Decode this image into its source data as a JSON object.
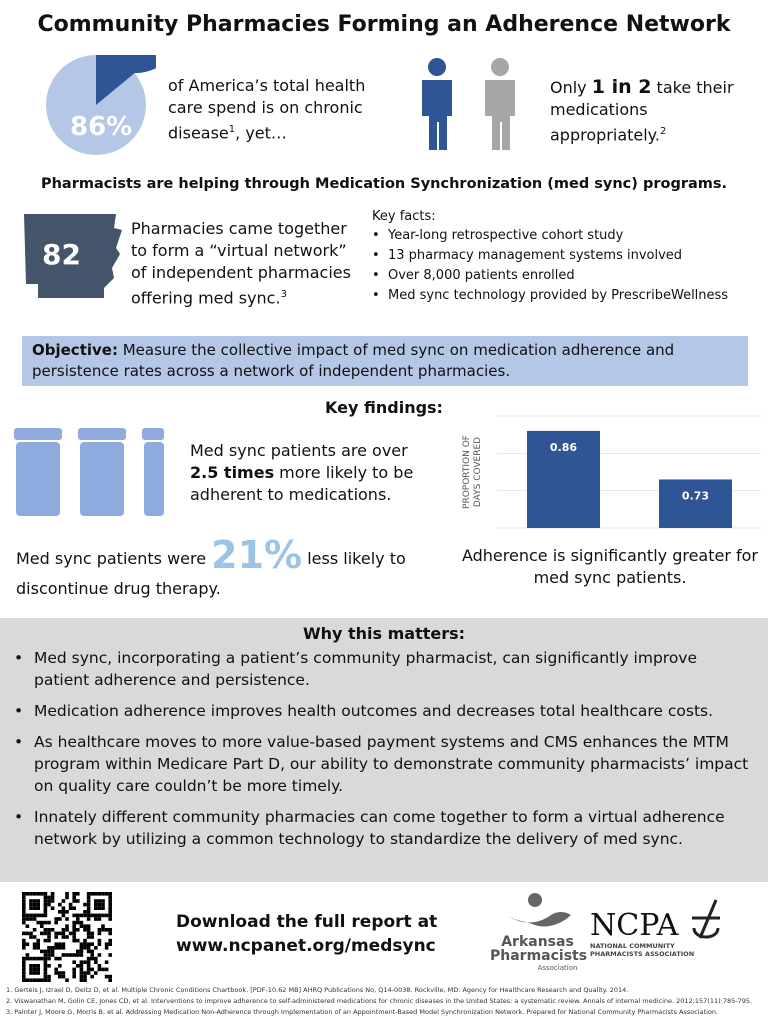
{
  "title": "Community Pharmacies Forming an Adherence Network",
  "stat1": {
    "value": "86%",
    "fraction": 0.86,
    "text": "of America’s total health care spend is on chronic disease",
    "sup": "1",
    "tail": ", yet…"
  },
  "stat2": {
    "pre": "Only ",
    "strong": "1 in 2",
    "post": " take their medications appropriately.",
    "sup": "2"
  },
  "subtitle": "Pharmacists are helping through Medication Synchronization (med sync) programs.",
  "network": {
    "count": "82",
    "text": "Pharmacies came together to form a “virtual network” of independent pharmacies offering med sync.",
    "sup": "3"
  },
  "key_facts": {
    "heading": "Key facts:",
    "items": [
      "Year-long retrospective cohort study",
      "13 pharmacy management systems involved",
      "Over 8,000 patients enrolled",
      "Med sync technology provided by PrescribeWellness"
    ]
  },
  "objective": {
    "label": "Objective:",
    "text": " Measure the collective impact of med sync on medication adherence and persistence rates across a network of independent pharmacies."
  },
  "findings": {
    "heading": "Key findings:",
    "f1_pre": "Med sync patients are over ",
    "f1_strong": "2.5 times",
    "f1_post": " more likely to be adherent to medications.",
    "f2_pre": "Med sync patients were ",
    "f2_big": "21%",
    "f2_post": " less likely to discontinue drug therapy.",
    "chart_caption": "Adherence is significantly greater for med sync patients."
  },
  "chart_data": {
    "type": "bar",
    "ylabel": "PROPORTION OF DAYS COVERED",
    "values": [
      0.86,
      0.73
    ],
    "data_labels": [
      "0.86",
      "0.73"
    ],
    "ylim": [
      0.6,
      0.9
    ],
    "grid": true,
    "color": "#2f5597"
  },
  "why": {
    "heading": "Why this matters:",
    "items": [
      "Med sync, incorporating a patient’s community pharmacist, can significantly improve patient adherence and persistence.",
      "Medication adherence improves health outcomes and decreases total healthcare costs.",
      "As healthcare moves to more value-based payment systems and CMS enhances the MTM program within Medicare Part D, our ability to demonstrate community pharmacists’ impact on quality care couldn’t be more timely.",
      "Innately different community pharmacies can come together to form a virtual adherence network by utilizing a common technology to standardize the delivery of med sync."
    ]
  },
  "download": {
    "line1": "Download the full report at",
    "line2": "www.ncpanet.org/medsync"
  },
  "logos": {
    "apa": [
      "Arkansas",
      "Pharmacists",
      "Association"
    ],
    "ncpa": "NCPA",
    "ncpa_sub": [
      "NATIONAL COMMUNITY",
      "PHARMACISTS ASSOCIATION"
    ]
  },
  "footnotes": [
    "1. Gerteis J, Izrael D, Deitz D, et al. Multiple Chronic Conditions Chartbook. [PDF-10.62 MB] AHRQ Publications No, Q14-0038. Rockville, MD: Agency for Healthcare Research and Quality. 2014.",
    "2. Viswanathan M, Golin CE, Jones CD, et al. Interventions to improve adherence to self-administered medications for chronic diseases in the United States: a systematic review. Annals of internal medicine. 2012;157(11):785-795.",
    "3. Painter J, Moore G, Morris B, et al. Addressing Medication Non-Adherence through Implementation of an Appointment-Based Model Synchronization Network. Prepared for National Community Pharmacists Association."
  ],
  "colors": {
    "accent": "#2f5597",
    "light": "#b4c7e7",
    "gray": "#d9d9d9"
  }
}
